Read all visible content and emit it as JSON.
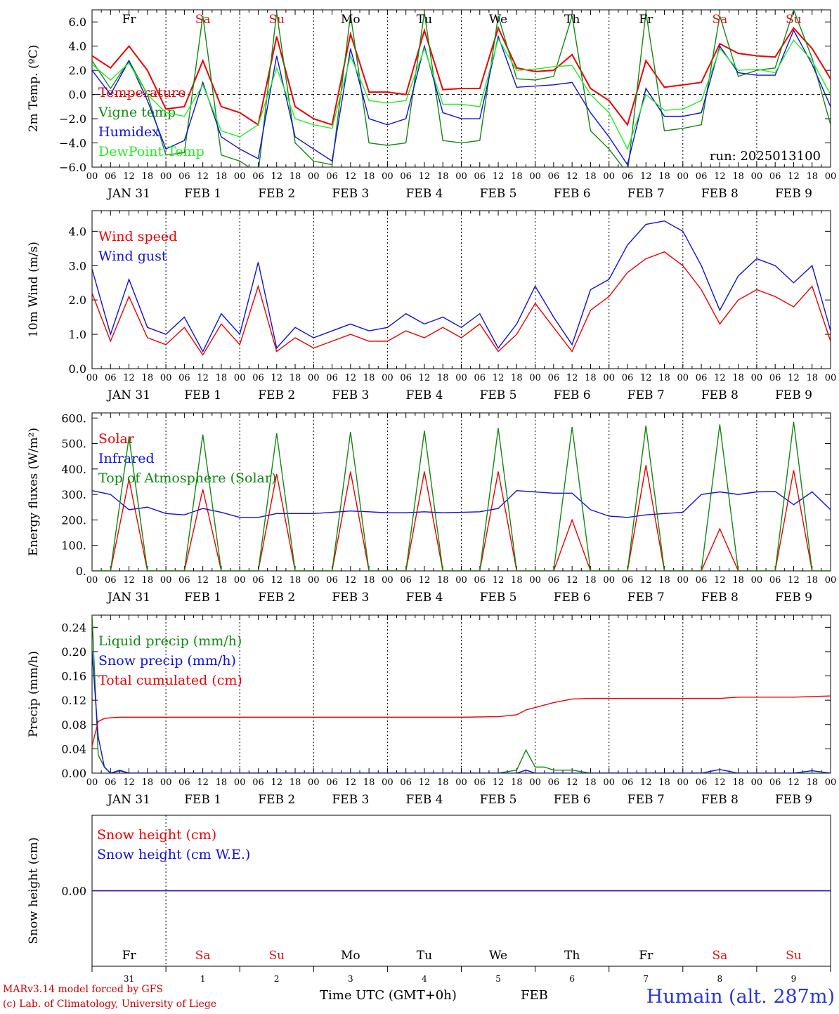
{
  "colors": {
    "red": "#ee0000",
    "dgreen": "#118811",
    "blue": "#1010dd",
    "lgreen": "#22ee22",
    "weekend": "#dd1111",
    "weekday": "#000000"
  },
  "days": [
    {
      "name": "Fr",
      "date": "JAN  31",
      "num": "31",
      "weekend": false
    },
    {
      "name": "Sa",
      "date": "FEB   1",
      "num": "1",
      "weekend": true
    },
    {
      "name": "Su",
      "date": "FEB   2",
      "num": "2",
      "weekend": true
    },
    {
      "name": "Mo",
      "date": "FEB   3",
      "num": "3",
      "weekend": false
    },
    {
      "name": "Tu",
      "date": "FEB   4",
      "num": "4",
      "weekend": false
    },
    {
      "name": "We",
      "date": "FEB   5",
      "num": "5",
      "weekend": false
    },
    {
      "name": "Th",
      "date": "FEB   6",
      "num": "6",
      "weekend": false
    },
    {
      "name": "Fr",
      "date": "FEB   7",
      "num": "7",
      "weekend": false
    },
    {
      "name": "Sa",
      "date": "FEB   8",
      "num": "8",
      "weekend": true
    },
    {
      "name": "Su",
      "date": "FEB   9",
      "num": "9",
      "weekend": true
    }
  ],
  "hours": [
    "00",
    "06",
    "12",
    "18"
  ],
  "run_label": "run: 2025013100",
  "footer": {
    "model": "MARv3.14 model forced by GFS",
    "lab": "(c) Lab. of Climatology, University of Liege",
    "time_label": "Time UTC (GMT+0h)",
    "month": "FEB",
    "station": "Humain (alt. 287m)"
  },
  "chart_data": [
    {
      "type": "line",
      "ylabel": "2m Temp. (ºC)",
      "ylim": [
        -6,
        7
      ],
      "yticks": [
        "6.0",
        "4.0",
        "2.0",
        "0.0",
        "−2.0",
        "−4.0",
        "−6.0"
      ],
      "ytickvals": [
        6,
        4,
        2,
        0,
        -2,
        -4,
        -6
      ],
      "zero_line": true,
      "x_hours": [
        0,
        6,
        12,
        18,
        24,
        30,
        36,
        42,
        48,
        54,
        60,
        66,
        72,
        78,
        84,
        90,
        96,
        102,
        108,
        114,
        120,
        126,
        132,
        138,
        144,
        150,
        156,
        162,
        168,
        174,
        180,
        186,
        192,
        198,
        204,
        210,
        216,
        222,
        228,
        234,
        240
      ],
      "series": [
        {
          "name": "Temperature",
          "color": "#ee0000",
          "values": [
            3.2,
            2.2,
            4.0,
            2.0,
            -1.2,
            -1.0,
            2.8,
            -1.0,
            -1.5,
            -2.5,
            4.8,
            -1.0,
            -2.0,
            -2.5,
            5.0,
            0.2,
            0.2,
            0.0,
            5.3,
            0.4,
            0.5,
            0.5,
            5.5,
            2.2,
            1.9,
            2.0,
            3.3,
            0.5,
            -0.5,
            -2.5,
            2.8,
            0.6,
            0.8,
            1.0,
            4.2,
            3.4,
            3.2,
            3.1,
            5.5,
            3.8,
            1.3
          ]
        },
        {
          "name": "Vigne temp",
          "color": "#118811",
          "values": [
            2.8,
            0.5,
            2.8,
            0.0,
            -5.0,
            -4.8,
            6.5,
            -5.0,
            -5.5,
            -6.5,
            6.8,
            -4.0,
            -5.5,
            -5.8,
            6.6,
            -4.0,
            -4.2,
            -4.0,
            6.8,
            -3.8,
            -4.0,
            -3.8,
            6.5,
            1.3,
            1.2,
            1.5,
            6.5,
            -3.0,
            -4.5,
            -6.5,
            6.8,
            -3.0,
            -2.8,
            -2.5,
            6.5,
            1.5,
            2.0,
            2.2,
            7.0,
            3.0,
            -2.5
          ]
        },
        {
          "name": "Humidex",
          "color": "#1010dd",
          "values": [
            2.0,
            0.0,
            2.8,
            -0.5,
            -4.5,
            -3.8,
            1.0,
            -3.5,
            -4.5,
            -5.3,
            3.2,
            -3.5,
            -4.5,
            -5.5,
            3.8,
            -2.0,
            -2.5,
            -2.0,
            4.0,
            -1.5,
            -2.0,
            -2.0,
            4.8,
            0.6,
            0.7,
            0.8,
            1.0,
            -1.5,
            -3.5,
            -5.8,
            0.5,
            -1.8,
            -1.8,
            -1.5,
            4.0,
            1.8,
            1.6,
            1.6,
            5.3,
            2.5,
            -1.0
          ]
        },
        {
          "name": "DewPoint Temp",
          "color": "#22ee22",
          "values": [
            2.5,
            1.2,
            2.6,
            0.0,
            -1.5,
            -1.8,
            0.8,
            -3.0,
            -3.5,
            -2.5,
            2.2,
            -2.0,
            -2.5,
            -2.8,
            3.2,
            -0.5,
            -0.7,
            -0.5,
            3.8,
            -0.8,
            -0.8,
            -1.0,
            4.6,
            2.0,
            2.1,
            2.3,
            2.4,
            0.0,
            -1.5,
            -4.5,
            0.0,
            -1.3,
            -1.2,
            -0.5,
            3.8,
            2.0,
            2.1,
            1.8,
            4.5,
            2.8,
            0.0
          ]
        }
      ]
    },
    {
      "type": "line",
      "ylabel": "10m Wind (m/s)",
      "ylim": [
        0,
        4.6
      ],
      "yticks": [
        "4.0",
        "3.0",
        "2.0",
        "1.0",
        "0.0"
      ],
      "ytickvals": [
        4,
        3,
        2,
        1,
        0
      ],
      "x_hours": [
        0,
        6,
        12,
        18,
        24,
        30,
        36,
        42,
        48,
        54,
        60,
        66,
        72,
        78,
        84,
        90,
        96,
        102,
        108,
        114,
        120,
        126,
        132,
        138,
        144,
        150,
        156,
        162,
        168,
        174,
        180,
        186,
        192,
        198,
        204,
        210,
        216,
        222,
        228,
        234,
        240
      ],
      "series": [
        {
          "name": "Wind speed",
          "color": "#ee0000",
          "values": [
            2.2,
            0.8,
            2.1,
            0.9,
            0.7,
            1.2,
            0.4,
            1.3,
            0.7,
            2.4,
            0.5,
            0.9,
            0.6,
            0.8,
            1.0,
            0.8,
            0.8,
            1.1,
            0.9,
            1.2,
            0.9,
            1.3,
            0.5,
            1.0,
            1.9,
            1.2,
            0.5,
            1.7,
            2.1,
            2.8,
            3.2,
            3.4,
            3.0,
            2.3,
            1.3,
            2.0,
            2.3,
            2.1,
            1.8,
            2.4,
            0.8
          ]
        },
        {
          "name": "Wind gust",
          "color": "#1010dd",
          "values": [
            2.9,
            1.0,
            2.6,
            1.2,
            1.0,
            1.5,
            0.5,
            1.6,
            1.0,
            3.1,
            0.6,
            1.2,
            0.9,
            1.1,
            1.3,
            1.1,
            1.2,
            1.6,
            1.3,
            1.5,
            1.2,
            1.6,
            0.6,
            1.3,
            2.4,
            1.5,
            0.7,
            2.3,
            2.6,
            3.6,
            4.2,
            4.3,
            4.0,
            3.0,
            1.7,
            2.7,
            3.2,
            3.0,
            2.5,
            3.0,
            1.1
          ]
        }
      ]
    },
    {
      "type": "line",
      "ylabel": "Energy fluxes (W/m²)",
      "ylim": [
        0,
        620
      ],
      "yticks": [
        "600.",
        "500.",
        "400.",
        "300.",
        "200.",
        "100.",
        "0."
      ],
      "ytickvals": [
        600,
        500,
        400,
        300,
        200,
        100,
        0
      ],
      "x_hours": [
        0,
        6,
        12,
        18,
        24,
        30,
        36,
        42,
        48,
        54,
        60,
        66,
        72,
        78,
        84,
        90,
        96,
        102,
        108,
        114,
        120,
        126,
        132,
        138,
        144,
        150,
        156,
        162,
        168,
        174,
        180,
        186,
        192,
        198,
        204,
        210,
        216,
        222,
        228,
        234,
        240
      ],
      "series": [
        {
          "name": "Solar",
          "color": "#ee0000",
          "values": [
            0,
            0,
            360,
            0,
            0,
            0,
            320,
            0,
            0,
            0,
            380,
            0,
            0,
            0,
            390,
            0,
            0,
            0,
            390,
            0,
            0,
            0,
            390,
            0,
            0,
            0,
            200,
            0,
            0,
            0,
            415,
            0,
            0,
            0,
            165,
            0,
            0,
            0,
            395,
            0,
            0
          ]
        },
        {
          "name": "Infrared",
          "color": "#1010dd",
          "values": [
            315,
            300,
            240,
            250,
            225,
            220,
            245,
            230,
            210,
            210,
            225,
            225,
            225,
            230,
            235,
            232,
            228,
            228,
            232,
            228,
            230,
            232,
            245,
            315,
            310,
            305,
            305,
            240,
            215,
            210,
            220,
            225,
            230,
            300,
            310,
            300,
            310,
            312,
            260,
            310,
            240
          ]
        },
        {
          "name": "Top of Atmosphere (Solar)",
          "color": "#118811",
          "values": [
            0,
            0,
            525,
            0,
            0,
            0,
            535,
            0,
            0,
            0,
            540,
            0,
            0,
            0,
            545,
            0,
            0,
            0,
            550,
            0,
            0,
            0,
            560,
            0,
            0,
            0,
            565,
            0,
            0,
            0,
            570,
            0,
            0,
            0,
            575,
            0,
            0,
            0,
            585,
            0,
            0
          ]
        }
      ]
    },
    {
      "type": "line",
      "ylabel": "Precip (mm/h)",
      "ylim": [
        0,
        0.26
      ],
      "yticks": [
        "0.24",
        "0.20",
        "0.16",
        "0.12",
        "0.08",
        "0.04",
        "0.00"
      ],
      "ytickvals": [
        0.24,
        0.2,
        0.16,
        0.12,
        0.08,
        0.04,
        0
      ],
      "x_hours": [
        0,
        2,
        4,
        6,
        9,
        12,
        18,
        24,
        36,
        48,
        60,
        72,
        84,
        96,
        108,
        120,
        132,
        138,
        141,
        144,
        147,
        150,
        156,
        162,
        168,
        180,
        192,
        198,
        204,
        210,
        216,
        222,
        228,
        234,
        240
      ],
      "series": [
        {
          "name": "Liquid precip (mm/h)",
          "color": "#118811",
          "values": [
            0.26,
            0.03,
            0.01,
            0.0,
            0.005,
            0.0,
            0.0,
            0.0,
            0.0,
            0.0,
            0.0,
            0.0,
            0.0,
            0.0,
            0.0,
            0.0,
            0.0,
            0.005,
            0.038,
            0.01,
            0.01,
            0.005,
            0.005,
            0.0,
            0.0,
            0.0,
            0.0,
            0.0,
            0.0,
            0.0,
            0.0,
            0.0,
            0.0,
            0.0,
            0.0
          ]
        },
        {
          "name": "Snow precip (mm/h)",
          "color": "#1010dd",
          "values": [
            0.2,
            0.06,
            0.01,
            0.0,
            0.004,
            0.0,
            0.0,
            0.0,
            0.0,
            0.0,
            0.0,
            0.0,
            0.0,
            0.0,
            0.0,
            0.0,
            0.0,
            0.0,
            0.005,
            0.0,
            0.0,
            0.0,
            0.0,
            0.0,
            0.0,
            0.0,
            0.0,
            0.0,
            0.006,
            0.0,
            0.0,
            0.0,
            0.0,
            0.004,
            0.0
          ]
        },
        {
          "name": "Total cumulated (cm)",
          "color": "#ee0000",
          "values": [
            0.045,
            0.085,
            0.09,
            0.091,
            0.092,
            0.092,
            0.092,
            0.092,
            0.092,
            0.092,
            0.092,
            0.092,
            0.092,
            0.092,
            0.092,
            0.092,
            0.093,
            0.096,
            0.104,
            0.108,
            0.112,
            0.116,
            0.122,
            0.123,
            0.123,
            0.123,
            0.123,
            0.123,
            0.123,
            0.125,
            0.125,
            0.125,
            0.125,
            0.126,
            0.127
          ]
        }
      ]
    },
    {
      "type": "line",
      "ylabel": "Snow height (cm)",
      "ylim": [
        -1,
        1
      ],
      "yticks": [
        "0.00"
      ],
      "ytickvals": [
        0
      ],
      "x_hours": [
        0,
        240
      ],
      "series": [
        {
          "name": "Snow height (cm)",
          "color": "#ee0000",
          "values": [
            0,
            0
          ]
        },
        {
          "name": "Snow height (cm W.E.)",
          "color": "#1010dd",
          "values": [
            0,
            0
          ]
        }
      ]
    }
  ]
}
